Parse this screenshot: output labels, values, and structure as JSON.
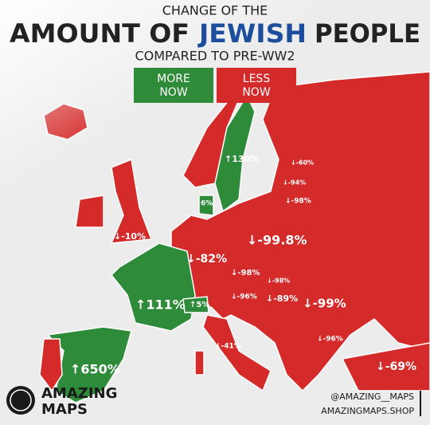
{
  "header": {
    "line1": "CHANGE OF THE",
    "line2a": "AMOUNT OF",
    "line2b": "JEWISH",
    "line2c": "PEOPLE",
    "line3": "COMPARED TO PRE-WW2"
  },
  "legend": {
    "more": [
      "MORE",
      "NOW"
    ],
    "less": [
      "LESS",
      "NOW"
    ]
  },
  "labels": [
    "↑130%",
    "↓-60%",
    "↓-94%",
    "↓-98%",
    "6%",
    "↓-10%",
    "↓-99.8%",
    "↓-82%",
    "↓-98%",
    "↓-98%",
    "↓-96%",
    "↓-89%",
    "↓-99%",
    "↑111%",
    "↑5%",
    "↓-41%",
    "↓-96%",
    "↑650%",
    "↓-69%"
  ],
  "brand": {
    "name1": "AMAZING",
    "name2": "MAPS",
    "instagram": "@AMAZING__MAPS",
    "site": "AMAZINGMAPS.SHOP"
  }
}
